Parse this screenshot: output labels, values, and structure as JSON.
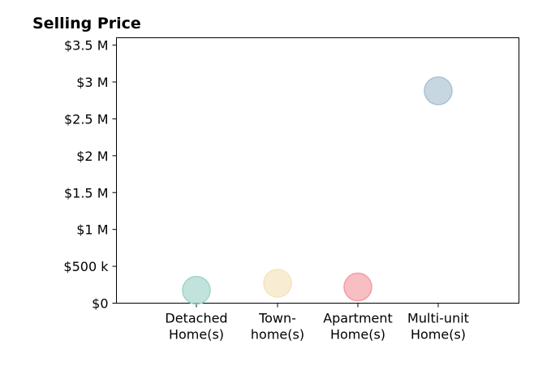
{
  "chart_data": {
    "type": "scatter",
    "title": "Selling Price",
    "xlabel": "",
    "ylabel": "",
    "categories": [
      [
        "Detached",
        "Home(s)"
      ],
      [
        "Town-",
        "home(s)"
      ],
      [
        "Apartment",
        "Home(s)"
      ],
      [
        "Multi-unit",
        "Home(s)"
      ]
    ],
    "values": [
      175000,
      270000,
      220000,
      2880000
    ],
    "colors": [
      "#9fd4c9",
      "#f5e3bc",
      "#f49da3",
      "#a9c1d3"
    ],
    "yticks": [
      0,
      500000,
      1000000,
      1500000,
      2000000,
      2500000,
      3000000,
      3500000
    ],
    "yticklabels": [
      "$0",
      "$500 k",
      "$1 M",
      "$1.5 M",
      "$2 M",
      "$2.5 M",
      "$3 M",
      "$3.5 M"
    ],
    "ylim": [
      0,
      3600000
    ],
    "grid": false,
    "legend": "none"
  }
}
